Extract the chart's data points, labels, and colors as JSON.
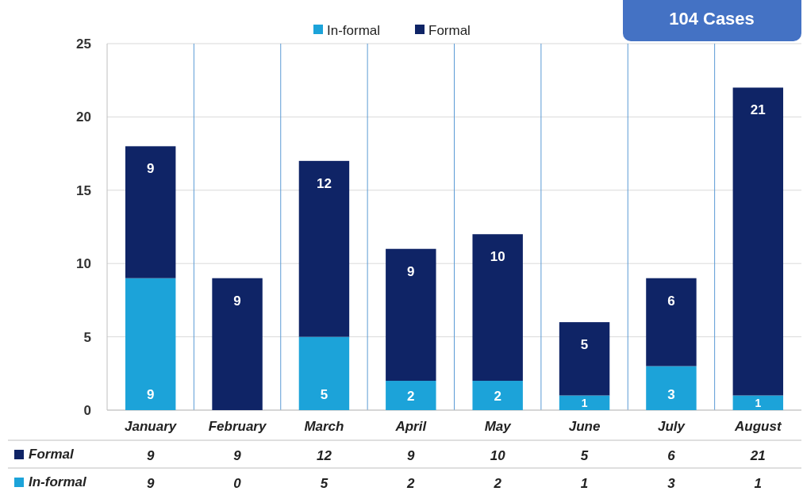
{
  "chart_data": [
    {
      "type": "bar",
      "stacked": true,
      "categories": [
        "January",
        "February",
        "March",
        "April",
        "May",
        "June",
        "July",
        "August"
      ],
      "series": [
        {
          "name": "In-formal",
          "color": "#1ca3d9",
          "values": [
            9,
            0,
            5,
            2,
            2,
            1,
            3,
            1
          ],
          "value_labels": [
            "9",
            null,
            "5",
            "2",
            "2",
            "1",
            "3",
            "1"
          ]
        },
        {
          "name": "Formal",
          "color": "#0f2466",
          "values": [
            9,
            9,
            12,
            9,
            10,
            5,
            6,
            21
          ],
          "value_labels": [
            "9",
            "9",
            "12",
            "9",
            "10",
            "5",
            "6",
            "21"
          ]
        }
      ],
      "ylim": [
        0,
        25
      ],
      "yticks": [
        0,
        5,
        10,
        15,
        20,
        25
      ],
      "grid": true,
      "legend": "top",
      "annotations": [
        "104 Cases"
      ]
    },
    {
      "type": "other",
      "annotations": [
        "Formal",
        "9",
        "9",
        "12",
        "9",
        "10",
        "5",
        "6",
        "21",
        "In-formal",
        "9",
        "0",
        "5",
        "2",
        "2",
        "1",
        "3",
        "1"
      ]
    }
  ]
}
